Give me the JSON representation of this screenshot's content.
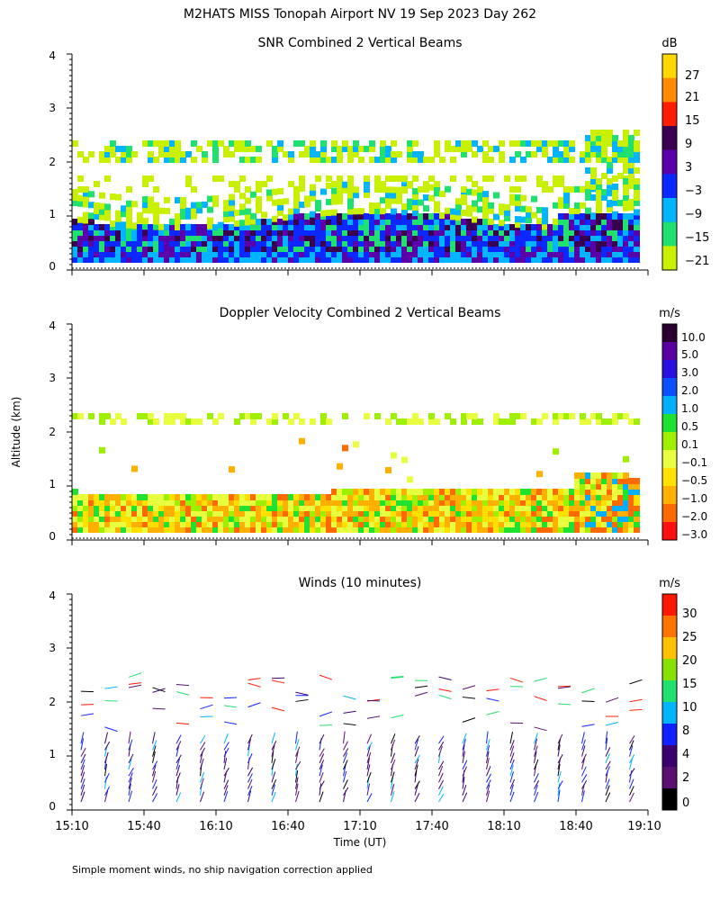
{
  "title": "M2HATS MISS Tonopah Airport NV  19 Sep 2023 Day 262",
  "ylabel": "Altitude (km)",
  "xlabel": "Time (UT)",
  "footnote": "Simple moment winds, no ship navigation correction applied",
  "x_ticks": [
    "15:10",
    "15:40",
    "16:10",
    "16:40",
    "17:10",
    "17:40",
    "18:10",
    "18:40",
    "19:10"
  ],
  "y_ticks": [
    "0",
    "1",
    "2",
    "3",
    "4"
  ],
  "chart_data": [
    {
      "type": "heatmap",
      "title": "SNR Combined 2 Vertical Beams",
      "colorbar_unit": "dB",
      "colorbar_labels": [
        "27",
        "21",
        "15",
        "9",
        "3",
        "−3",
        "−9",
        "−15",
        "−21"
      ],
      "colorbar_colors": [
        "#ffd800",
        "#ff8c00",
        "#ff1c00",
        "#3a0050",
        "#5a00aa",
        "#0a28ff",
        "#00b4ff",
        "#20e070",
        "#c8f000"
      ],
      "xlim": [
        "15:10",
        "19:10"
      ],
      "ylim": [
        0,
        4
      ],
      "features": [
        {
          "altitude_km": [
            0.15,
            0.9
          ],
          "description": "strong return layer"
        },
        {
          "altitude_km": [
            1.4,
            2.5
          ],
          "description": "weak return layers"
        }
      ]
    },
    {
      "type": "heatmap",
      "title": "Doppler Velocity Combined 2 Vertical Beams",
      "colorbar_unit": "m/s",
      "colorbar_labels": [
        "10.0",
        "5.0",
        "3.0",
        "2.0",
        "1.0",
        "0.5",
        "0.1",
        "−0.1",
        "−0.5",
        "−1.0",
        "−2.0",
        "−3.0"
      ],
      "colorbar_colors": [
        "#2a0030",
        "#5a00a0",
        "#2a10e0",
        "#0a50ff",
        "#00b0ff",
        "#20e030",
        "#9ef000",
        "#e8ff40",
        "#ffe000",
        "#ffb000",
        "#ff6a00",
        "#ff1010"
      ],
      "xlim": [
        "15:10",
        "19:10"
      ],
      "ylim": [
        0,
        4
      ]
    },
    {
      "type": "scatter",
      "title": "Winds (10 minutes)",
      "colorbar_unit": "m/s",
      "colorbar_labels": [
        "30",
        "25",
        "20",
        "15",
        "10",
        "8",
        "4",
        "2",
        "0"
      ],
      "colorbar_colors": [
        "#ff1800",
        "#ff7400",
        "#ffc000",
        "#88e000",
        "#20e070",
        "#00b4ff",
        "#1020ff",
        "#3a0070",
        "#5a1070",
        "#000000"
      ],
      "xlim": [
        "15:10",
        "19:10"
      ],
      "ylim": [
        0,
        4
      ]
    }
  ]
}
